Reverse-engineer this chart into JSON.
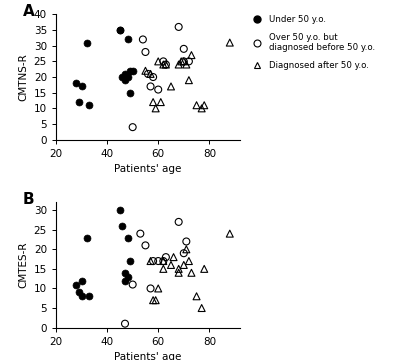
{
  "panel_A": {
    "filled_circles": {
      "x": [
        28,
        29,
        30,
        32,
        33,
        45,
        45,
        46,
        47,
        47,
        48,
        48,
        49,
        49,
        50
      ],
      "y": [
        18,
        12,
        17,
        31,
        11,
        35,
        35,
        20,
        21,
        19,
        32,
        20,
        22,
        15,
        22
      ]
    },
    "open_circles": {
      "x": [
        50,
        54,
        55,
        56,
        57,
        58,
        60,
        62,
        63,
        68,
        70,
        70,
        72
      ],
      "y": [
        4,
        32,
        28,
        21,
        17,
        20,
        16,
        25,
        24,
        36,
        25,
        29,
        25
      ]
    },
    "triangles": {
      "x": [
        55,
        57,
        58,
        59,
        60,
        61,
        62,
        63,
        65,
        68,
        69,
        70,
        71,
        72,
        73,
        75,
        77,
        78,
        88
      ],
      "y": [
        22,
        21,
        12,
        10,
        25,
        12,
        24,
        24,
        17,
        24,
        25,
        25,
        24,
        19,
        27,
        11,
        10,
        11,
        31
      ]
    },
    "ylabel": "CMTNS-R",
    "ylim": [
      0,
      40
    ],
    "yticks": [
      0,
      5,
      10,
      15,
      20,
      25,
      30,
      35,
      40
    ],
    "panel_label": "A"
  },
  "panel_B": {
    "filled_circles": {
      "x": [
        28,
        29,
        30,
        30,
        32,
        33,
        45,
        46,
        47,
        47,
        48,
        48,
        49
      ],
      "y": [
        11,
        9,
        8,
        12,
        23,
        8,
        30,
        26,
        14,
        12,
        23,
        13,
        17
      ]
    },
    "open_circles": {
      "x": [
        47,
        50,
        53,
        55,
        57,
        58,
        60,
        62,
        63,
        68,
        70,
        71
      ],
      "y": [
        1,
        11,
        24,
        21,
        10,
        17,
        17,
        17,
        18,
        27,
        19,
        22
      ]
    },
    "triangles": {
      "x": [
        57,
        58,
        59,
        60,
        62,
        62,
        65,
        66,
        68,
        68,
        70,
        71,
        72,
        73,
        75,
        77,
        78,
        88
      ],
      "y": [
        17,
        7,
        7,
        10,
        17,
        15,
        16,
        18,
        15,
        14,
        16,
        20,
        17,
        14,
        8,
        5,
        15,
        24
      ]
    },
    "ylabel": "CMTES-R",
    "ylim": [
      0,
      32
    ],
    "yticks": [
      0,
      5,
      10,
      15,
      20,
      25,
      30
    ],
    "panel_label": "B"
  },
  "xlim": [
    20,
    92
  ],
  "xticks": [
    20,
    40,
    60,
    80
  ],
  "xlabel": "Patients' age",
  "legend_labels": [
    "Under 50 y.o.",
    "Over 50 y.o. but\ndiagnosed before 50 y.o.",
    "Diagnosed after 50 y.o."
  ],
  "marker_size": 5,
  "bg_color": "#ffffff",
  "text_color": "#000000"
}
